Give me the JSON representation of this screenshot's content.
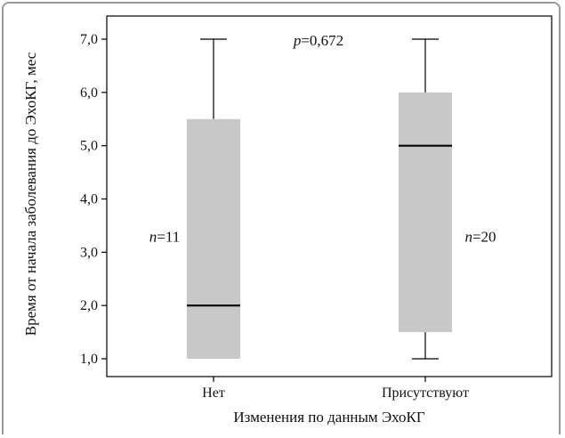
{
  "chart_data": {
    "type": "boxplot",
    "categories": [
      "Нет",
      "Присутствуют"
    ],
    "boxes": [
      {
        "category": "Нет",
        "min": 1.0,
        "q1": 1.0,
        "median": 2.0,
        "q3": 5.5,
        "max": 7.0,
        "n_label": "n",
        "n_value": "=11"
      },
      {
        "category": "Присутствуют",
        "min": 1.0,
        "q1": 1.5,
        "median": 5.0,
        "q3": 6.0,
        "max": 7.0,
        "n_label": "n",
        "n_value": "=20"
      }
    ],
    "xlabel": "Изменения по данным ЭхоКГ",
    "ylabel": "Время от начала заболевания до ЭхоКГ, мес",
    "ylim": [
      0.7,
      7.3
    ],
    "yticks": [
      1.0,
      2.0,
      3.0,
      4.0,
      5.0,
      6.0,
      7.0
    ],
    "ytick_labels": [
      "1,0",
      "2,0",
      "3,0",
      "4,0",
      "5,0",
      "6,0",
      "7,0"
    ],
    "p_annotation": {
      "label": "p",
      "value": "=0,672"
    },
    "colors": {
      "box_fill": "#c8c8c8",
      "median": "#000000",
      "frame": "#9a9a9a"
    },
    "grid": false,
    "legend": "none"
  }
}
